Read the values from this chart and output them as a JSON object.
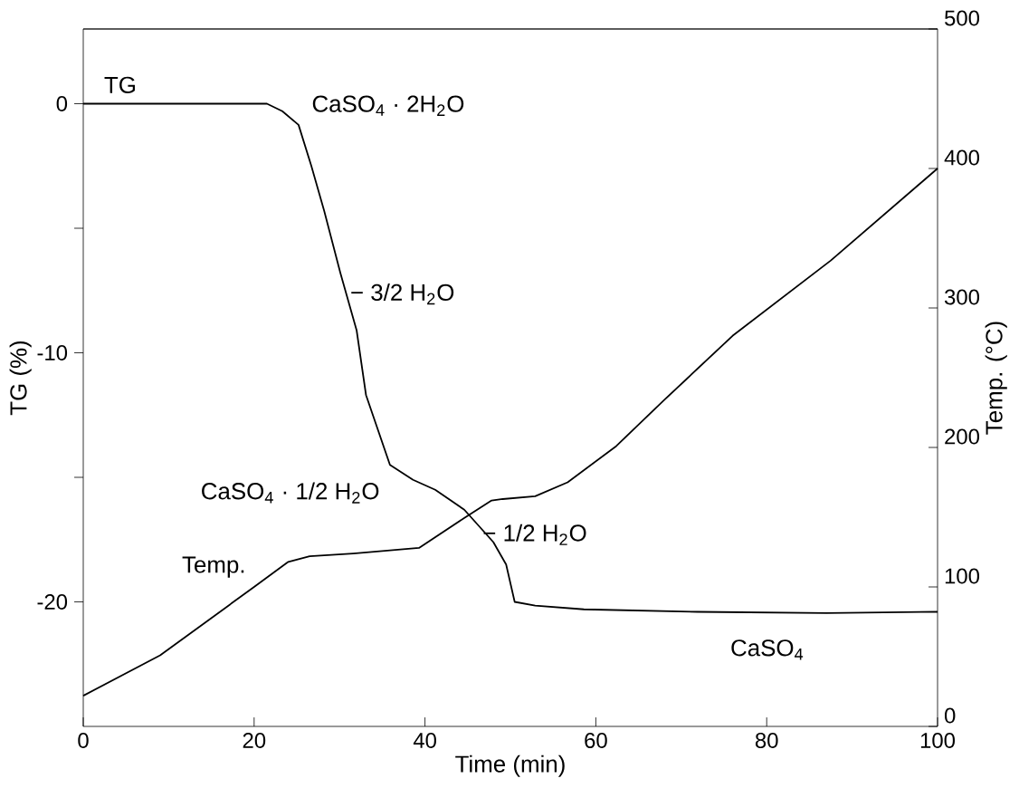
{
  "chart_data": {
    "type": "line",
    "xlabel": "Time (min)",
    "ylabel": "TG (%)",
    "y2label": "Temp. (°C)",
    "xlim": [
      0,
      100
    ],
    "xticks": [
      0,
      20,
      40,
      60,
      80,
      100
    ],
    "ylim": [
      -25,
      3
    ],
    "yticks": [
      -20,
      {
        "value": -15,
        "label": null
      },
      -10,
      {
        "value": -5,
        "label": null
      },
      0
    ],
    "y2lim": [
      0,
      500
    ],
    "y2ticks": [
      0,
      100,
      200,
      300,
      400,
      500
    ],
    "grid": false,
    "legend": false,
    "marker": "none",
    "line_style": "solid",
    "series": [
      {
        "name": "TG",
        "color": "#000000",
        "x": [
          0,
          20,
          21.5,
          23.3,
          25.2,
          26.7,
          28.2,
          30.1,
          32,
          33.1,
          35.9,
          38.6,
          41.2,
          44.6,
          48,
          49.5,
          50.5,
          52.9,
          58.6,
          71.9,
          87,
          100
        ],
        "values": [
          0,
          0,
          0,
          -0.3,
          -0.85,
          -2.5,
          -4.3,
          -6.8,
          -9.1,
          -11.7,
          -14.5,
          -15.1,
          -15.5,
          -16.3,
          -17.6,
          -18.5,
          -20,
          -20.15,
          -20.3,
          -20.4,
          -20.45,
          -20.4
        ]
      },
      {
        "name": "Temp.",
        "color": "#000000",
        "axis": "y2",
        "x": [
          0,
          9,
          20,
          24,
          26.5,
          31.6,
          39.3,
          44.5,
          47.8,
          49.1,
          52.9,
          56.7,
          62.4,
          68,
          76,
          87.5,
          100
        ],
        "values": [
          22,
          51,
          100,
          118,
          122,
          124,
          128,
          149,
          162,
          163,
          165,
          175,
          201,
          234,
          280,
          334,
          400
        ]
      }
    ],
    "annotations": [
      "CaSO$_{4}$ · 2H$_{2}$O",
      "− 3/2 H$_{2}$O",
      "CaSO$_{4}$ · 1/2 H$_{2}$O",
      "− 1/2 H$_{2}$O",
      "CaSO$_{4}$"
    ]
  }
}
